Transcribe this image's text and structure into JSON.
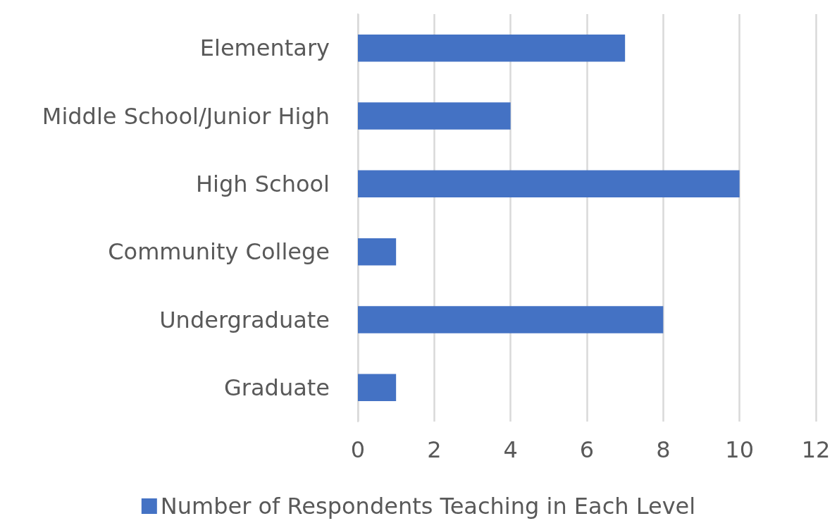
{
  "chart_data": {
    "type": "bar",
    "orientation": "horizontal",
    "categories": [
      "Elementary",
      "Middle School/Junior High",
      "High School",
      "Community College",
      "Undergraduate",
      "Graduate"
    ],
    "series": [
      {
        "name": "Number of Respondents Teaching in Each Level",
        "color": "#4472c4",
        "values": [
          7,
          4,
          10,
          1,
          8,
          1
        ]
      }
    ],
    "xlim": [
      0,
      12
    ],
    "xticks": [
      0,
      2,
      4,
      6,
      8,
      10,
      12
    ],
    "grid": "x",
    "legend": "bottom"
  }
}
